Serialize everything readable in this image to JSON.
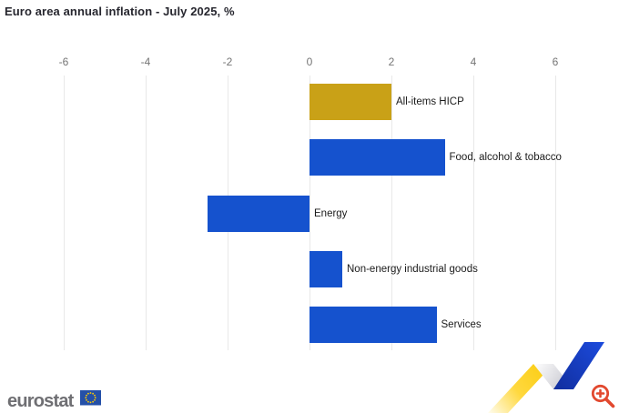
{
  "title": "Euro area annual inflation - July 2025, %",
  "chart_data": {
    "type": "bar",
    "orientation": "horizontal",
    "title": "Euro area annual inflation - July 2025, %",
    "categories": [
      "All-items HICP",
      "Food, alcohol & tobacco",
      "Energy",
      "Non-energy industrial goods",
      "Services"
    ],
    "values": [
      2.0,
      3.3,
      -2.5,
      0.8,
      3.1
    ],
    "bar_colors": [
      "#C9A117",
      "#1552CE",
      "#1552CE",
      "#1552CE",
      "#1552CE"
    ],
    "xlim": [
      -6,
      6
    ],
    "x_ticks": [
      -6,
      -4,
      -2,
      0,
      2,
      4,
      6
    ],
    "xlabel": "",
    "ylabel": "",
    "grid": true,
    "legend": false,
    "label_position": "outside-end"
  },
  "footer": {
    "logo_text": "eurostat",
    "icons": {
      "flag": "eu-flag-icon",
      "ribbon": "eurostat-ribbon-graphic",
      "zoom": "zoom-in-icon"
    }
  },
  "colors": {
    "accent_gold": "#C9A117",
    "accent_blue": "#1552CE",
    "grid": "#E8E8E8",
    "tick_text": "#757575",
    "label_text": "#1B1B1B",
    "title_text": "#26262E",
    "logo_text": "#6F6F73",
    "flag_blue": "#2450A8",
    "star_yellow": "#FFCC00",
    "zoom_red": "#E2492F",
    "ribbon_yellow": "#FFD210",
    "ribbon_blue": "#1B49DD"
  }
}
